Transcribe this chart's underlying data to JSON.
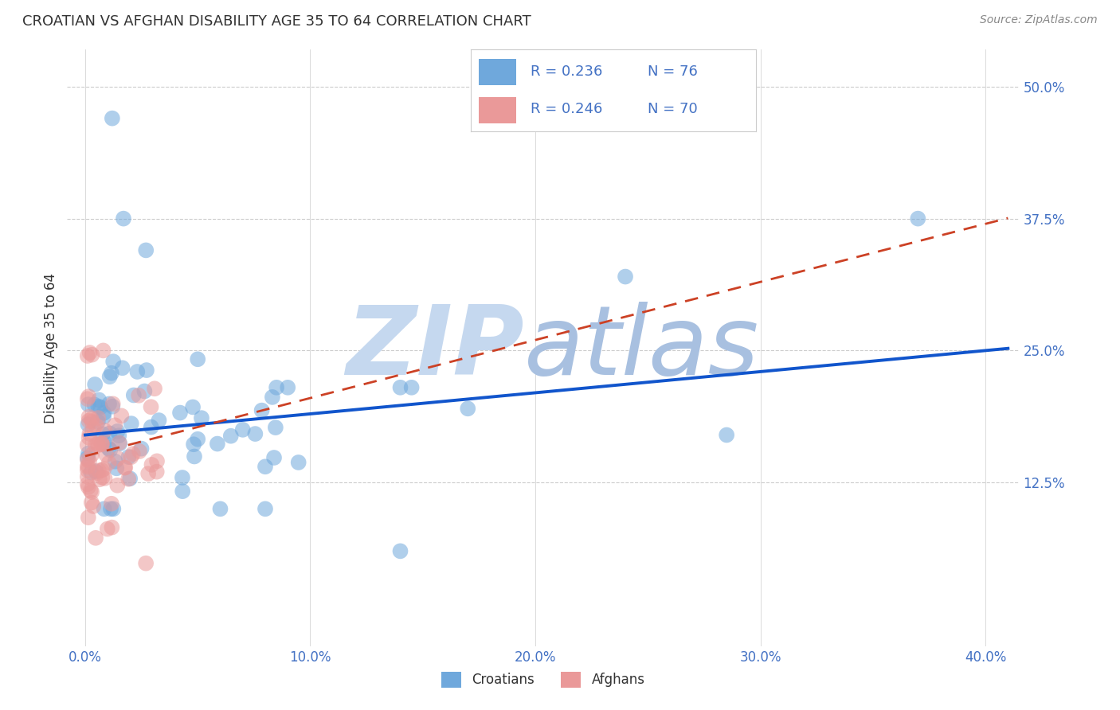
{
  "title": "CROATIAN VS AFGHAN DISABILITY AGE 35 TO 64 CORRELATION CHART",
  "source": "Source: ZipAtlas.com",
  "xlabel_ticks": [
    "0.0%",
    "10.0%",
    "20.0%",
    "30.0%",
    "40.0%"
  ],
  "xlabel_tick_vals": [
    0.0,
    0.1,
    0.2,
    0.3,
    0.4
  ],
  "ylabel_ticks": [
    "50.0%",
    "37.5%",
    "25.0%",
    "12.5%"
  ],
  "ylabel_tick_vals": [
    0.5,
    0.375,
    0.25,
    0.125
  ],
  "ylabel": "Disability Age 35 to 64",
  "xlim": [
    -0.008,
    0.415
  ],
  "ylim": [
    -0.03,
    0.535
  ],
  "croatian_R": 0.236,
  "croatian_N": 76,
  "afghan_R": 0.246,
  "afghan_N": 70,
  "croatian_color": "#6fa8dc",
  "afghan_color": "#ea9999",
  "croatian_line_color": "#1155cc",
  "afghan_line_color": "#cc4125",
  "watermark_zip": "ZIP",
  "watermark_atlas": "atlas",
  "watermark_color": "#c8d8ee",
  "grid_color": "#cccccc",
  "background_color": "#ffffff",
  "title_color": "#333333",
  "source_color": "#888888",
  "tick_color": "#4472c4",
  "ylabel_color": "#333333"
}
